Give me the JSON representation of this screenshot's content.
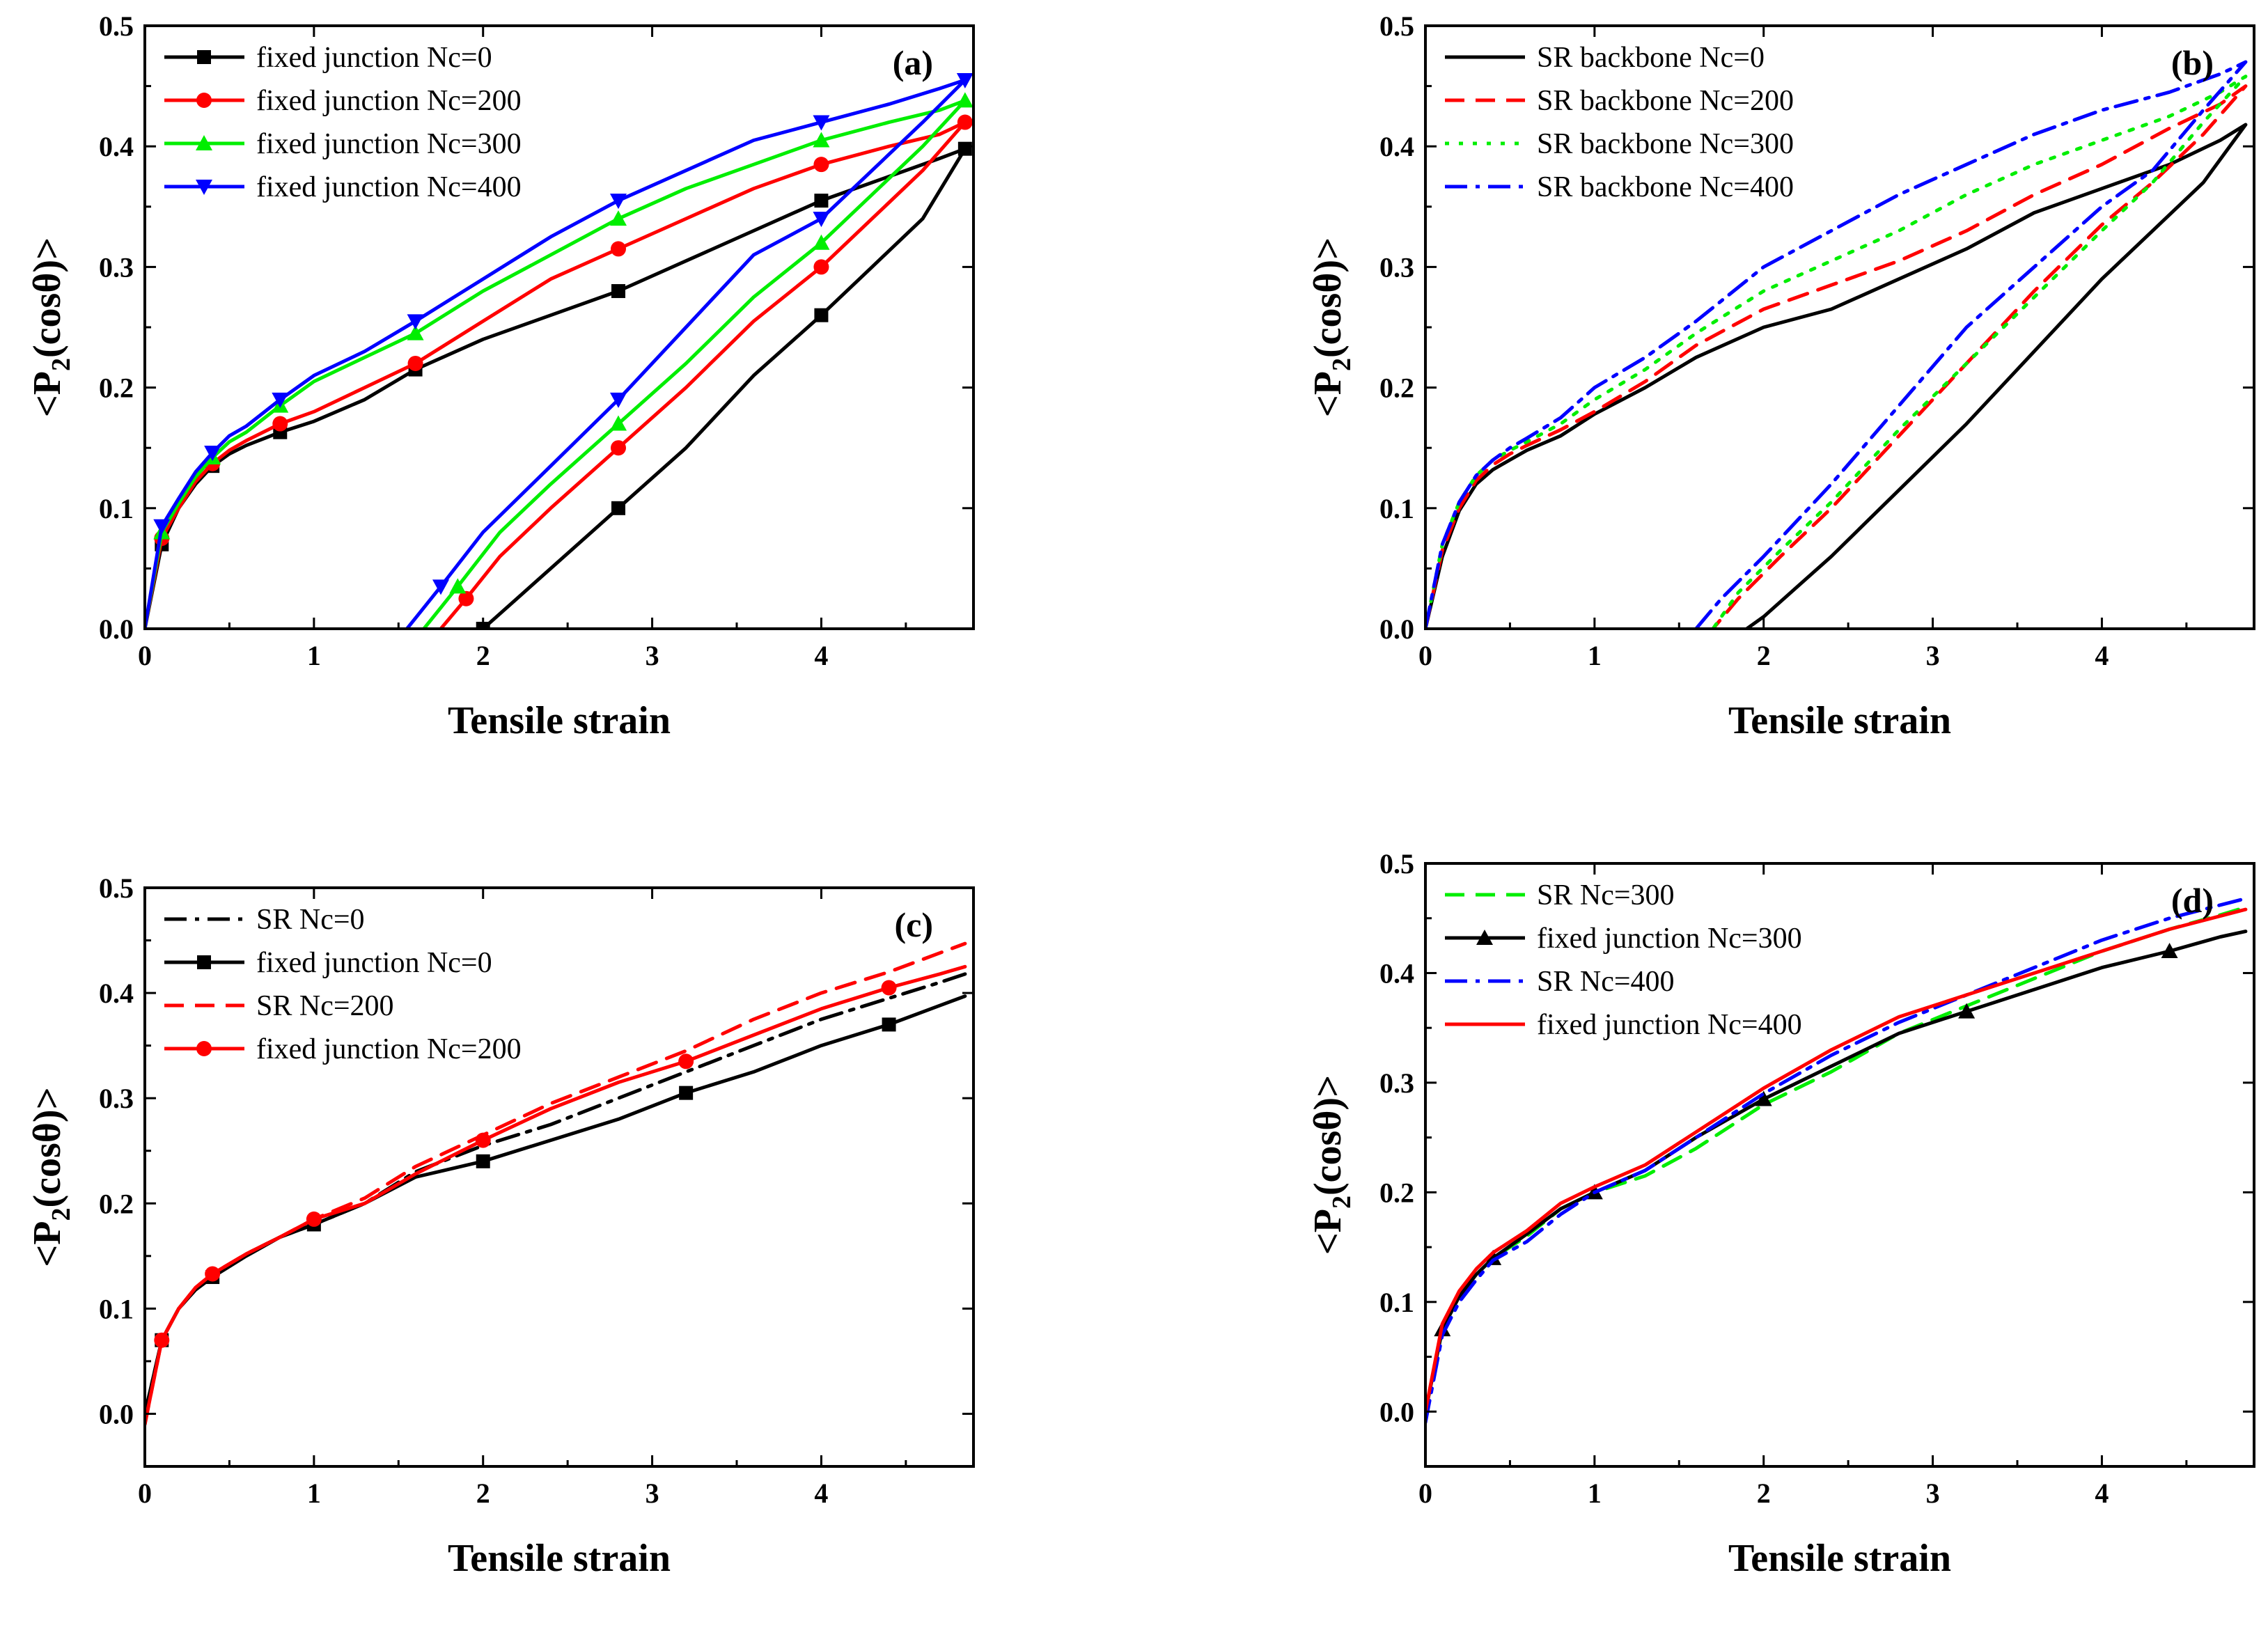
{
  "chart_data": [
    {
      "id": "a",
      "type": "line",
      "panel_label": "(a)",
      "xlabel": "Tensile strain",
      "ylabel_parts": [
        "<P",
        "2",
        "(cosθ)>"
      ],
      "xlim": [
        0,
        4.9
      ],
      "ylim": [
        0,
        0.5
      ],
      "xticks": [
        "0",
        "1",
        "2",
        "3",
        "4"
      ],
      "yticks": [
        "0.0",
        "0.1",
        "0.2",
        "0.3",
        "0.4",
        "0.5"
      ],
      "legend_position": "top-left",
      "series": [
        {
          "name": "fixed junction Nc=0",
          "color": "#000000",
          "dash": "solid",
          "marker": "square",
          "x": [
            0,
            0.1,
            0.2,
            0.3,
            0.4,
            0.5,
            0.6,
            0.8,
            1.0,
            1.3,
            1.6,
            2.0,
            2.4,
            2.8,
            3.2,
            3.6,
            4.0,
            4.4,
            4.7,
            4.85,
            4.6,
            4.3,
            4.0,
            3.6,
            3.2,
            2.8,
            2.4,
            2.2,
            2.0
          ],
          "y": [
            0,
            0.07,
            0.1,
            0.12,
            0.135,
            0.145,
            0.152,
            0.163,
            0.172,
            0.19,
            0.215,
            0.24,
            0.26,
            0.28,
            0.305,
            0.33,
            0.355,
            0.375,
            0.39,
            0.398,
            0.34,
            0.3,
            0.26,
            0.21,
            0.15,
            0.1,
            0.05,
            0.025,
            0
          ]
        },
        {
          "name": "fixed junction Nc=200",
          "color": "#ff0000",
          "dash": "solid",
          "marker": "circle",
          "x": [
            0,
            0.1,
            0.2,
            0.3,
            0.4,
            0.5,
            0.6,
            0.8,
            1.0,
            1.3,
            1.6,
            2.0,
            2.4,
            2.8,
            3.2,
            3.6,
            4.0,
            4.4,
            4.7,
            4.85,
            4.6,
            4.3,
            4.0,
            3.6,
            3.2,
            2.8,
            2.4,
            2.1,
            1.9,
            1.75
          ],
          "y": [
            0,
            0.075,
            0.1,
            0.122,
            0.137,
            0.148,
            0.156,
            0.17,
            0.18,
            0.2,
            0.22,
            0.255,
            0.29,
            0.315,
            0.34,
            0.365,
            0.385,
            0.4,
            0.41,
            0.42,
            0.38,
            0.34,
            0.3,
            0.255,
            0.2,
            0.15,
            0.1,
            0.06,
            0.025,
            0
          ]
        },
        {
          "name": "fixed junction Nc=300",
          "color": "#00ee00",
          "dash": "solid",
          "marker": "triangle-up",
          "x": [
            0,
            0.1,
            0.2,
            0.3,
            0.4,
            0.5,
            0.6,
            0.8,
            1.0,
            1.3,
            1.6,
            2.0,
            2.4,
            2.8,
            3.2,
            3.6,
            4.0,
            4.4,
            4.7,
            4.85,
            4.6,
            4.3,
            4.0,
            3.6,
            3.2,
            2.8,
            2.4,
            2.1,
            1.85,
            1.65
          ],
          "y": [
            0,
            0.08,
            0.104,
            0.126,
            0.142,
            0.155,
            0.163,
            0.185,
            0.205,
            0.225,
            0.245,
            0.28,
            0.31,
            0.34,
            0.365,
            0.385,
            0.405,
            0.42,
            0.43,
            0.438,
            0.4,
            0.36,
            0.32,
            0.275,
            0.22,
            0.17,
            0.12,
            0.08,
            0.035,
            0
          ]
        },
        {
          "name": "fixed junction Nc=400",
          "color": "#0000ff",
          "dash": "solid",
          "marker": "triangle-down",
          "x": [
            0,
            0.1,
            0.2,
            0.3,
            0.4,
            0.5,
            0.6,
            0.8,
            1.0,
            1.3,
            1.6,
            2.0,
            2.4,
            2.8,
            3.2,
            3.6,
            4.0,
            4.4,
            4.7,
            4.85,
            4.6,
            4.3,
            4.0,
            3.6,
            3.2,
            2.8,
            2.4,
            2.0,
            1.75,
            1.55
          ],
          "y": [
            0,
            0.085,
            0.108,
            0.13,
            0.146,
            0.16,
            0.168,
            0.19,
            0.21,
            0.23,
            0.255,
            0.29,
            0.325,
            0.355,
            0.38,
            0.405,
            0.42,
            0.435,
            0.448,
            0.455,
            0.42,
            0.38,
            0.34,
            0.31,
            0.25,
            0.19,
            0.135,
            0.08,
            0.035,
            0
          ]
        }
      ]
    },
    {
      "id": "b",
      "type": "line",
      "panel_label": "(b)",
      "xlabel": "Tensile strain",
      "ylabel_parts": [
        "<P",
        "2",
        "(cosθ)>"
      ],
      "xlim": [
        0,
        4.9
      ],
      "ylim": [
        0,
        0.5
      ],
      "xticks": [
        "0",
        "1",
        "2",
        "3",
        "4"
      ],
      "yticks": [
        "0.0",
        "0.1",
        "0.2",
        "0.3",
        "0.4",
        "0.5"
      ],
      "legend_position": "top-left",
      "series": [
        {
          "name": "SR backbone Nc=0",
          "color": "#000000",
          "dash": "solid",
          "marker": "none",
          "x": [
            0,
            0.1,
            0.2,
            0.3,
            0.4,
            0.5,
            0.6,
            0.8,
            1.0,
            1.3,
            1.6,
            2.0,
            2.4,
            2.8,
            3.2,
            3.6,
            4.0,
            4.4,
            4.7,
            4.85,
            4.6,
            4.3,
            4.0,
            3.6,
            3.2,
            2.8,
            2.4,
            2.2,
            2.0,
            1.9
          ],
          "y": [
            0,
            0.06,
            0.098,
            0.12,
            0.132,
            0.14,
            0.148,
            0.16,
            0.178,
            0.2,
            0.225,
            0.25,
            0.265,
            0.29,
            0.315,
            0.345,
            0.365,
            0.385,
            0.405,
            0.418,
            0.37,
            0.33,
            0.29,
            0.23,
            0.17,
            0.115,
            0.06,
            0.035,
            0.01,
            0
          ]
        },
        {
          "name": "SR backbone Nc=200",
          "color": "#ff0000",
          "dash": "dashed",
          "marker": "none",
          "x": [
            0,
            0.1,
            0.2,
            0.3,
            0.4,
            0.5,
            0.6,
            0.8,
            1.0,
            1.3,
            1.6,
            2.0,
            2.4,
            2.8,
            3.2,
            3.6,
            4.0,
            4.4,
            4.7,
            4.85,
            4.6,
            4.3,
            4.0,
            3.6,
            3.2,
            2.8,
            2.4,
            2.1,
            1.85,
            1.7
          ],
          "y": [
            0,
            0.065,
            0.1,
            0.123,
            0.136,
            0.145,
            0.152,
            0.165,
            0.18,
            0.205,
            0.235,
            0.265,
            0.285,
            0.305,
            0.33,
            0.36,
            0.385,
            0.415,
            0.435,
            0.45,
            0.41,
            0.37,
            0.335,
            0.28,
            0.22,
            0.16,
            0.1,
            0.06,
            0.025,
            0
          ]
        },
        {
          "name": "SR backbone Nc=300",
          "color": "#00ee00",
          "dash": "dotted",
          "marker": "none",
          "x": [
            0,
            0.1,
            0.2,
            0.3,
            0.4,
            0.5,
            0.6,
            0.8,
            1.0,
            1.3,
            1.6,
            2.0,
            2.4,
            2.8,
            3.2,
            3.6,
            4.0,
            4.4,
            4.7,
            4.85,
            4.6,
            4.3,
            4.0,
            3.6,
            3.2,
            2.8,
            2.4,
            2.1,
            1.85,
            1.7
          ],
          "y": [
            0,
            0.07,
            0.105,
            0.127,
            0.14,
            0.148,
            0.155,
            0.17,
            0.19,
            0.215,
            0.245,
            0.28,
            0.305,
            0.33,
            0.36,
            0.385,
            0.405,
            0.425,
            0.445,
            0.458,
            0.42,
            0.37,
            0.33,
            0.275,
            0.22,
            0.165,
            0.105,
            0.065,
            0.03,
            0
          ]
        },
        {
          "name": "SR backbone Nc=400",
          "color": "#0000ff",
          "dash": "dashdot",
          "marker": "none",
          "x": [
            0,
            0.1,
            0.2,
            0.3,
            0.4,
            0.5,
            0.6,
            0.8,
            1.0,
            1.3,
            1.6,
            2.0,
            2.4,
            2.8,
            3.2,
            3.6,
            4.0,
            4.4,
            4.7,
            4.85,
            4.6,
            4.3,
            4.0,
            3.6,
            3.2,
            2.8,
            2.4,
            2.0,
            1.75,
            1.6
          ],
          "y": [
            0,
            0.07,
            0.105,
            0.127,
            0.14,
            0.15,
            0.158,
            0.175,
            0.2,
            0.225,
            0.255,
            0.3,
            0.33,
            0.36,
            0.385,
            0.41,
            0.43,
            0.445,
            0.46,
            0.47,
            0.43,
            0.38,
            0.35,
            0.3,
            0.25,
            0.185,
            0.12,
            0.06,
            0.025,
            0
          ]
        }
      ]
    },
    {
      "id": "c",
      "type": "line",
      "panel_label": "(c)",
      "xlabel": "Tensile strain",
      "ylabel_parts": [
        "<P",
        "2",
        "(cosθ)>"
      ],
      "xlim": [
        0,
        4.9
      ],
      "ylim": [
        -0.05,
        0.5
      ],
      "xticks": [
        "0",
        "1",
        "2",
        "3",
        "4"
      ],
      "yticks": [
        "0.0",
        "0.1",
        "0.2",
        "0.3",
        "0.4",
        "0.5"
      ],
      "legend_position": "top-left",
      "series": [
        {
          "name": "SR Nc=0",
          "color": "#000000",
          "dash": "dashdot",
          "marker": "none",
          "x": [
            0,
            0.1,
            0.2,
            0.3,
            0.4,
            0.6,
            0.8,
            1.0,
            1.3,
            1.6,
            2.0,
            2.4,
            2.8,
            3.2,
            3.6,
            4.0,
            4.4,
            4.7,
            4.85
          ],
          "y": [
            0,
            0.07,
            0.1,
            0.118,
            0.13,
            0.152,
            0.168,
            0.18,
            0.2,
            0.23,
            0.255,
            0.275,
            0.3,
            0.325,
            0.35,
            0.375,
            0.395,
            0.41,
            0.418
          ]
        },
        {
          "name": "fixed junction Nc=0",
          "color": "#000000",
          "dash": "solid",
          "marker": "square",
          "x": [
            0,
            0.1,
            0.2,
            0.3,
            0.4,
            0.6,
            0.8,
            1.0,
            1.3,
            1.6,
            2.0,
            2.4,
            2.8,
            3.2,
            3.6,
            4.0,
            4.4,
            4.7,
            4.85
          ],
          "y": [
            0,
            0.07,
            0.1,
            0.118,
            0.13,
            0.15,
            0.168,
            0.18,
            0.2,
            0.225,
            0.24,
            0.26,
            0.28,
            0.305,
            0.325,
            0.35,
            0.37,
            0.388,
            0.397
          ]
        },
        {
          "name": "SR Nc=200",
          "color": "#ff0000",
          "dash": "dashed",
          "marker": "none",
          "x": [
            0,
            0.1,
            0.2,
            0.3,
            0.4,
            0.6,
            0.8,
            1.0,
            1.3,
            1.6,
            2.0,
            2.4,
            2.8,
            3.2,
            3.6,
            4.0,
            4.4,
            4.7,
            4.85
          ],
          "y": [
            -0.01,
            0.07,
            0.1,
            0.12,
            0.133,
            0.152,
            0.168,
            0.185,
            0.205,
            0.235,
            0.265,
            0.295,
            0.32,
            0.345,
            0.375,
            0.4,
            0.42,
            0.438,
            0.447
          ]
        },
        {
          "name": "fixed junction Nc=200",
          "color": "#ff0000",
          "dash": "solid",
          "marker": "circle",
          "x": [
            0,
            0.1,
            0.2,
            0.3,
            0.4,
            0.6,
            0.8,
            1.0,
            1.3,
            1.6,
            2.0,
            2.4,
            2.8,
            3.2,
            3.6,
            4.0,
            4.4,
            4.7,
            4.85
          ],
          "y": [
            -0.01,
            0.07,
            0.1,
            0.12,
            0.133,
            0.152,
            0.168,
            0.185,
            0.2,
            0.228,
            0.26,
            0.29,
            0.315,
            0.335,
            0.36,
            0.385,
            0.405,
            0.418,
            0.425
          ]
        }
      ]
    },
    {
      "id": "d",
      "type": "line",
      "panel_label": "(d)",
      "xlabel": "Tensile strain",
      "ylabel_parts": [
        "<P",
        "2",
        "(cosθ)>"
      ],
      "xlim": [
        0,
        4.9
      ],
      "ylim": [
        -0.05,
        0.5
      ],
      "xticks": [
        "0",
        "1",
        "2",
        "3",
        "4"
      ],
      "yticks": [
        "0.0",
        "0.1",
        "0.2",
        "0.3",
        "0.4",
        "0.5"
      ],
      "legend_position": "top-left",
      "series": [
        {
          "name": "SR Nc=300",
          "color": "#00ee00",
          "dash": "dashed",
          "marker": "none",
          "x": [
            0,
            0.1,
            0.2,
            0.3,
            0.4,
            0.6,
            0.8,
            1.0,
            1.3,
            1.6,
            2.0,
            2.4,
            2.8,
            3.2,
            3.6,
            4.0,
            4.4,
            4.7,
            4.85
          ],
          "y": [
            0,
            0.075,
            0.105,
            0.125,
            0.14,
            0.16,
            0.185,
            0.2,
            0.215,
            0.24,
            0.28,
            0.31,
            0.345,
            0.37,
            0.395,
            0.42,
            0.44,
            0.453,
            0.46
          ]
        },
        {
          "name": "fixed junction Nc=300",
          "color": "#000000",
          "dash": "solid",
          "marker": "triangle-up",
          "x": [
            0,
            0.1,
            0.2,
            0.3,
            0.4,
            0.6,
            0.8,
            1.0,
            1.3,
            1.6,
            2.0,
            2.4,
            2.8,
            3.2,
            3.6,
            4.0,
            4.4,
            4.7,
            4.85
          ],
          "y": [
            0,
            0.075,
            0.105,
            0.125,
            0.14,
            0.162,
            0.185,
            0.2,
            0.22,
            0.25,
            0.285,
            0.315,
            0.345,
            0.365,
            0.385,
            0.405,
            0.42,
            0.433,
            0.438
          ]
        },
        {
          "name": "SR Nc=400",
          "color": "#0000ff",
          "dash": "dashdot",
          "marker": "none",
          "x": [
            0,
            0.1,
            0.2,
            0.3,
            0.4,
            0.6,
            0.8,
            1.0,
            1.3,
            1.6,
            2.0,
            2.4,
            2.8,
            3.2,
            3.6,
            4.0,
            4.4,
            4.7,
            4.85
          ],
          "y": [
            -0.01,
            0.07,
            0.1,
            0.12,
            0.138,
            0.155,
            0.18,
            0.2,
            0.22,
            0.25,
            0.29,
            0.325,
            0.355,
            0.38,
            0.405,
            0.43,
            0.45,
            0.462,
            0.468
          ]
        },
        {
          "name": "fixed junction Nc=400",
          "color": "#ff0000",
          "dash": "solid",
          "marker": "none",
          "x": [
            0,
            0.1,
            0.2,
            0.3,
            0.4,
            0.6,
            0.8,
            1.0,
            1.3,
            1.6,
            2.0,
            2.4,
            2.8,
            3.2,
            3.6,
            4.0,
            4.4,
            4.7,
            4.85
          ],
          "y": [
            0,
            0.08,
            0.11,
            0.13,
            0.145,
            0.165,
            0.19,
            0.205,
            0.225,
            0.255,
            0.295,
            0.33,
            0.36,
            0.38,
            0.4,
            0.42,
            0.44,
            0.452,
            0.458
          ]
        }
      ]
    }
  ]
}
